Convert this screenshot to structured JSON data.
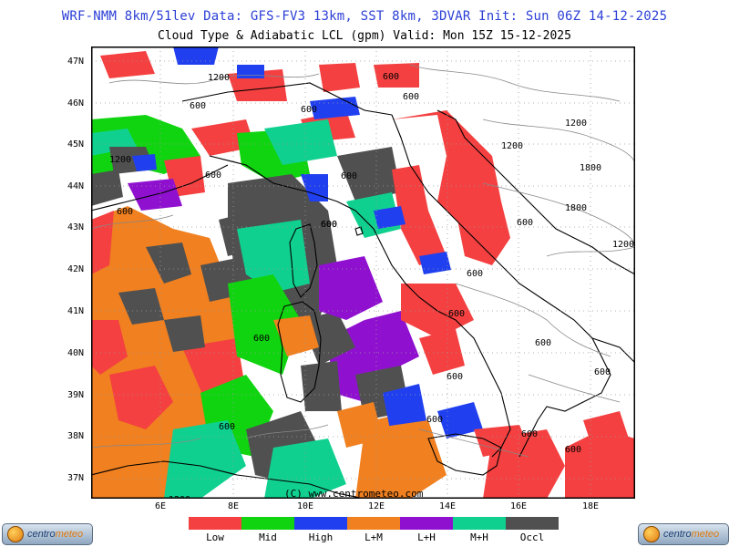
{
  "header": {
    "line1": "WRF-NMM 8km/51lev  Data: GFS-FV3 13km, SST 8km, 3DVAR  Init: Sun 06Z 14-12-2025",
    "line2": "Cloud Type & Adiabatic LCL (gpm)  Valid: Mon 15Z 15-12-2025"
  },
  "map": {
    "lat_labels": [
      "47N",
      "46N",
      "45N",
      "44N",
      "43N",
      "42N",
      "41N",
      "40N",
      "39N",
      "38N",
      "37N"
    ],
    "lon_labels": [
      "6E",
      "8E",
      "10E",
      "12E",
      "14E",
      "16E",
      "18E"
    ],
    "watermark": "(C) www.centrometeo.com",
    "contour_labels": [
      "1200",
      "600",
      "1200",
      "600",
      "600",
      "600",
      "600",
      "600",
      "1200",
      "1200",
      "1800",
      "1800",
      "1200",
      "600",
      "600",
      "600",
      "600",
      "600",
      "600",
      "600",
      "600",
      "600",
      "1200",
      "600",
      "600",
      "600",
      "600",
      "600"
    ]
  },
  "legend": {
    "items": [
      {
        "label": "Low",
        "color": "#f44040"
      },
      {
        "label": "Mid",
        "color": "#10d410"
      },
      {
        "label": "High",
        "color": "#2040f0"
      },
      {
        "label": "L+M",
        "color": "#f08020"
      },
      {
        "label": "L+H",
        "color": "#9010d0"
      },
      {
        "label": "M+H",
        "color": "#10d090"
      },
      {
        "label": "Occl",
        "color": "#505050"
      }
    ]
  },
  "logos": {
    "left": {
      "name_a": "centro",
      "name_b": "meteo"
    },
    "right": {
      "name_a": "centro",
      "name_b": "meteo"
    }
  }
}
